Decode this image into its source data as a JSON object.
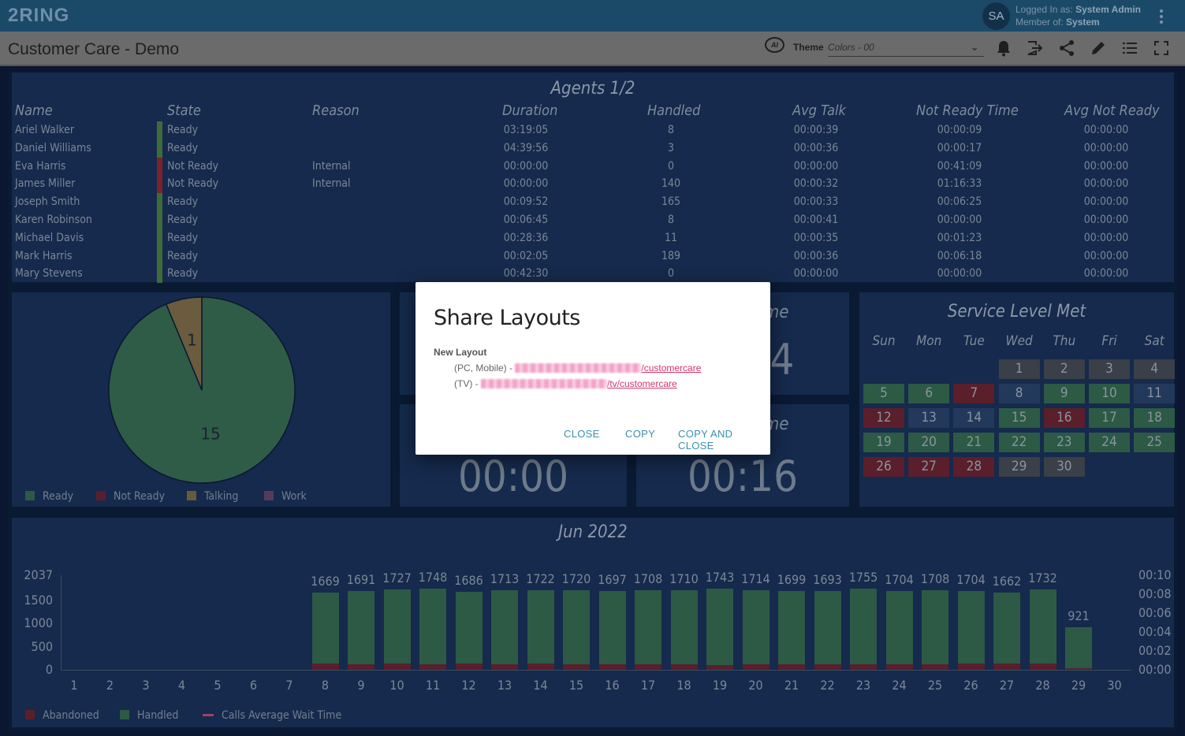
{
  "app": {
    "logo": "2RING",
    "avatar_initials": "SA",
    "logged_in_label": "Logged In as:",
    "logged_in_user": "System Admin",
    "member_label": "Member of:",
    "member_group": "System"
  },
  "toolbar": {
    "title": "Customer Care - Demo",
    "ai_label": "AI",
    "theme_label": "Theme",
    "theme_value": "Colors - 00"
  },
  "agents": {
    "title": "Agents 1/2",
    "columns": [
      "Name",
      "State",
      "Reason",
      "Duration",
      "Handled",
      "Avg Talk",
      "Not Ready Time",
      "Avg Not Ready"
    ],
    "rows": [
      {
        "name": "Ariel Walker",
        "state": "Ready",
        "reason": "",
        "duration": "03:19:05",
        "handled": "8",
        "avg_talk": "00:00:39",
        "nr_time": "00:00:09",
        "avg_nr": "00:00:00"
      },
      {
        "name": "Daniel Williams",
        "state": "Ready",
        "reason": "",
        "duration": "04:39:56",
        "handled": "3",
        "avg_talk": "00:00:36",
        "nr_time": "00:00:17",
        "avg_nr": "00:00:00"
      },
      {
        "name": "Eva Harris",
        "state": "Not Ready",
        "reason": "Internal",
        "duration": "00:00:00",
        "handled": "0",
        "avg_talk": "00:00:00",
        "nr_time": "00:41:09",
        "avg_nr": "00:00:00"
      },
      {
        "name": "James Miller",
        "state": "Not Ready",
        "reason": "Internal",
        "duration": "00:00:00",
        "handled": "140",
        "avg_talk": "00:00:32",
        "nr_time": "01:16:33",
        "avg_nr": "00:00:00"
      },
      {
        "name": "Joseph Smith",
        "state": "Ready",
        "reason": "",
        "duration": "00:09:52",
        "handled": "165",
        "avg_talk": "00:00:33",
        "nr_time": "00:06:25",
        "avg_nr": "00:00:00"
      },
      {
        "name": "Karen Robinson",
        "state": "Ready",
        "reason": "",
        "duration": "00:06:45",
        "handled": "8",
        "avg_talk": "00:00:41",
        "nr_time": "00:00:00",
        "avg_nr": "00:00:00"
      },
      {
        "name": "Michael Davis",
        "state": "Ready",
        "reason": "",
        "duration": "00:28:36",
        "handled": "11",
        "avg_talk": "00:00:35",
        "nr_time": "00:01:23",
        "avg_nr": "00:00:00"
      },
      {
        "name": "Mark Harris",
        "state": "Ready",
        "reason": "",
        "duration": "00:02:05",
        "handled": "189",
        "avg_talk": "00:00:36",
        "nr_time": "00:06:18",
        "avg_nr": "00:00:00"
      },
      {
        "name": "Mary Stevens",
        "state": "Ready",
        "reason": "",
        "duration": "00:42:30",
        "handled": "0",
        "avg_talk": "00:00:00",
        "nr_time": "00:00:00",
        "avg_nr": "00:00:00"
      }
    ]
  },
  "pie": {
    "legend": [
      {
        "label": "Ready",
        "color": "#2c5a44"
      },
      {
        "label": "Not Ready",
        "color": "#5a1f2b"
      },
      {
        "label": "Talking",
        "color": "#6b5a3a"
      },
      {
        "label": "Work",
        "color": "#5a3a5a"
      }
    ],
    "slices": [
      {
        "label": "Ready",
        "value": 15,
        "color": "#2f5c47"
      },
      {
        "label": "Talking",
        "value": 1,
        "color": "#6b5c3f"
      }
    ]
  },
  "tiles": [
    {
      "title": "ime",
      "value": "4"
    },
    {
      "title": "",
      "value": "00:00"
    },
    {
      "title": "ime",
      "value": "00:16"
    }
  ],
  "calendar": {
    "title": "Service Level Met",
    "days": [
      "Sun",
      "Mon",
      "Tue",
      "Wed",
      "Thu",
      "Fri",
      "Sat"
    ],
    "cells": [
      {
        "d": "1",
        "c": "#3a3f48"
      },
      {
        "d": "2",
        "c": "#3a3f48"
      },
      {
        "d": "3",
        "c": "#3a3f48"
      },
      {
        "d": "4",
        "c": "#3a3f48"
      },
      {
        "d": "5",
        "c": "#2c5a44"
      },
      {
        "d": "6",
        "c": "#2c5a44"
      },
      {
        "d": "7",
        "c": "#5a1f2b"
      },
      {
        "d": "8",
        "c": "#23395c"
      },
      {
        "d": "9",
        "c": "#2c5a44"
      },
      {
        "d": "10",
        "c": "#2c5a44"
      },
      {
        "d": "11",
        "c": "#23395c"
      },
      {
        "d": "12",
        "c": "#5a1f2b"
      },
      {
        "d": "13",
        "c": "#23395c"
      },
      {
        "d": "14",
        "c": "#23395c"
      },
      {
        "d": "15",
        "c": "#2c5a44"
      },
      {
        "d": "16",
        "c": "#5a1f2b"
      },
      {
        "d": "17",
        "c": "#2c5a44"
      },
      {
        "d": "18",
        "c": "#2c5a44"
      },
      {
        "d": "19",
        "c": "#2c5a44"
      },
      {
        "d": "20",
        "c": "#2c5a44"
      },
      {
        "d": "21",
        "c": "#2c5a44"
      },
      {
        "d": "22",
        "c": "#2c5a44"
      },
      {
        "d": "23",
        "c": "#2c5a44"
      },
      {
        "d": "24",
        "c": "#2c5a44"
      },
      {
        "d": "25",
        "c": "#2c5a44"
      },
      {
        "d": "26",
        "c": "#5a1f2b"
      },
      {
        "d": "27",
        "c": "#5a1f2b"
      },
      {
        "d": "28",
        "c": "#5a1f2b"
      },
      {
        "d": "29",
        "c": "#3a3f48"
      },
      {
        "d": "30",
        "c": "#3a3f48"
      }
    ]
  },
  "chart_data": {
    "type": "bar",
    "title": "Jun 2022",
    "categories": [
      "1",
      "2",
      "3",
      "4",
      "5",
      "6",
      "7",
      "8",
      "9",
      "10",
      "11",
      "12",
      "13",
      "14",
      "15",
      "16",
      "17",
      "18",
      "19",
      "20",
      "21",
      "22",
      "23",
      "24",
      "25",
      "26",
      "27",
      "28",
      "29",
      "30"
    ],
    "series": [
      {
        "name": "Handled",
        "color": "#2c5a44",
        "values": [
          0,
          0,
          0,
          0,
          0,
          0,
          0,
          1669,
          1691,
          1727,
          1748,
          1686,
          1713,
          1722,
          1720,
          1697,
          1708,
          1710,
          1743,
          1714,
          1699,
          1693,
          1755,
          1704,
          1708,
          1704,
          1662,
          1732,
          921,
          0
        ]
      },
      {
        "name": "Abandoned",
        "color": "#5a1f2b",
        "values": [
          0,
          0,
          0,
          0,
          0,
          0,
          0,
          140,
          120,
          130,
          125,
          128,
          118,
          130,
          115,
          120,
          118,
          122,
          110,
          112,
          115,
          118,
          120,
          115,
          112,
          130,
          140,
          135,
          30,
          0
        ]
      }
    ],
    "series_line": {
      "name": "Calls Average Wait Time",
      "color": "#a0406a"
    },
    "ylim": [
      0,
      2037
    ],
    "yticks": [
      "2037",
      "1500",
      "1000",
      "500",
      "0"
    ],
    "y2ticks": [
      "00:10",
      "00:08",
      "00:06",
      "00:04",
      "00:02",
      "00:00"
    ],
    "legend": [
      {
        "label": "Abandoned",
        "color": "#5a1f2b"
      },
      {
        "label": "Handled",
        "color": "#2c5a44"
      },
      {
        "label": "Calls Average Wait Time",
        "color": "#a0406a"
      }
    ]
  },
  "modal": {
    "title": "Share Layouts",
    "subtitle": "New Layout",
    "line1_prefix": "(PC, Mobile) -",
    "line1_link": "/customercare",
    "line2_prefix": "(TV) -",
    "line2_link": "/tv/customercare",
    "close": "CLOSE",
    "copy": "COPY",
    "copy_close": "COPY AND CLOSE"
  }
}
